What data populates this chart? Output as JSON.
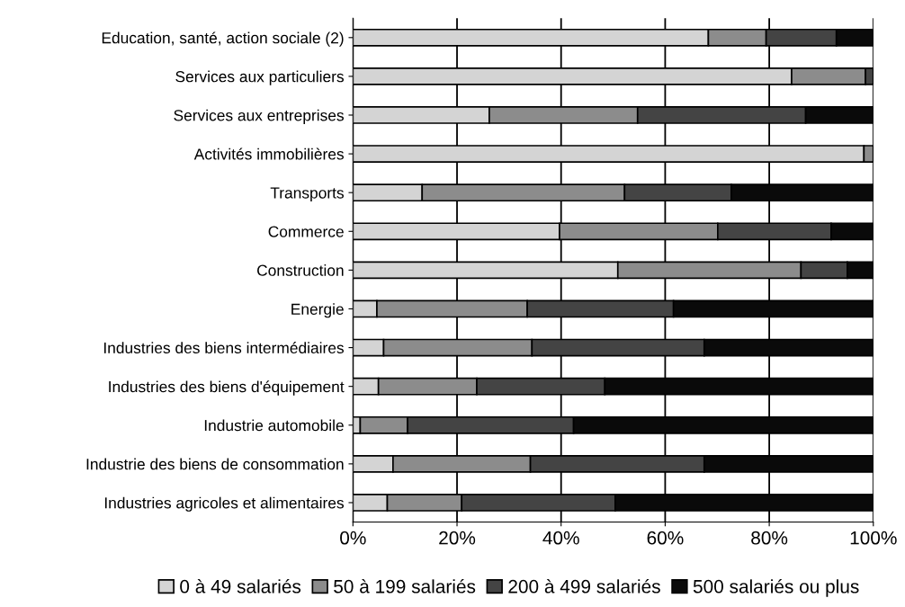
{
  "chart_data": {
    "type": "bar",
    "orientation": "horizontal",
    "stacked": true,
    "categories": [
      "Education, santé, action sociale (2)",
      "Services aux particuliers",
      "Services aux entreprises",
      "Activités immobilières",
      "Transports",
      "Commerce",
      "Construction",
      "Energie",
      "Industries des biens intermédiaires",
      "Industries des biens d'équipement",
      "Industrie automobile",
      "Industrie des biens de consommation",
      "Industries agricoles et alimentaires"
    ],
    "series": [
      {
        "name": "0 à 49 salariés",
        "color": "#d4d4d4",
        "values": [
          68.3,
          84.3,
          26.2,
          98.2,
          13.3,
          39.7,
          50.9,
          4.6,
          5.9,
          4.9,
          1.4,
          7.7,
          6.6
        ]
      },
      {
        "name": "50 à 199 salariés",
        "color": "#8c8c8c",
        "values": [
          11.1,
          14.2,
          28.5,
          1.8,
          38.9,
          30.4,
          35.2,
          28.9,
          28.5,
          18.9,
          9.1,
          26.4,
          14.3
        ]
      },
      {
        "name": "200 à 499 salariés",
        "color": "#444444",
        "values": [
          13.5,
          1.5,
          32.3,
          0,
          20.5,
          21.8,
          8.9,
          28.1,
          33.1,
          24.6,
          31.9,
          33.4,
          29.5
        ]
      },
      {
        "name": "500 salariés ou plus",
        "color": "#0a0a0a",
        "values": [
          7.1,
          0,
          13.0,
          0,
          27.3,
          8.1,
          5.0,
          38.4,
          32.5,
          51.6,
          57.6,
          32.5,
          49.6
        ]
      }
    ],
    "xlim": [
      0,
      100
    ],
    "xticks": [
      {
        "value": 0,
        "label": "0%"
      },
      {
        "value": 20,
        "label": "20%"
      },
      {
        "value": 40,
        "label": "40%"
      },
      {
        "value": 60,
        "label": "60%"
      },
      {
        "value": 80,
        "label": "80%"
      },
      {
        "value": 100,
        "label": "100%"
      }
    ],
    "grid": "x",
    "legend": "bottom"
  }
}
